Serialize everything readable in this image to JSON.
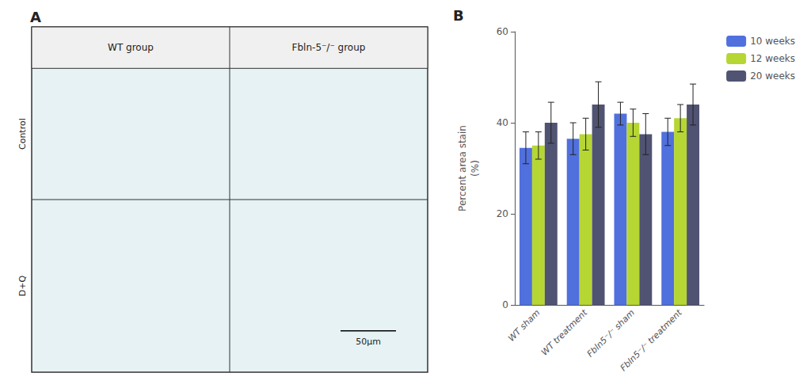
{
  "chart_data": {
    "type": "bar",
    "categories": [
      "WT sham",
      "WT treatment",
      "Fbln5⁻/⁻ sham",
      "Fbln5⁻/⁻ treatment"
    ],
    "series": [
      {
        "name": "10 weeks",
        "values": [
          34.5,
          36.5,
          42.0,
          38.0
        ],
        "errors": [
          3.5,
          3.5,
          2.5,
          3.0
        ]
      },
      {
        "name": "12 weeks",
        "values": [
          35.0,
          37.5,
          40.0,
          41.0
        ],
        "errors": [
          3.0,
          3.5,
          3.0,
          3.0
        ]
      },
      {
        "name": "20 weeks",
        "values": [
          40.0,
          44.0,
          37.5,
          44.0
        ],
        "errors": [
          4.5,
          5.0,
          4.5,
          4.5
        ]
      }
    ],
    "ylabel": "Percent area stain\n(%)",
    "ylim": [
      0,
      60
    ],
    "yticks": [
      0,
      20,
      40,
      60
    ],
    "grid": false,
    "legend": "upper right",
    "annotations": [
      "A",
      "B",
      "WT group",
      "Fbln-5⁻/⁻ group",
      "Control",
      "D+Q",
      "50μm"
    ]
  }
}
